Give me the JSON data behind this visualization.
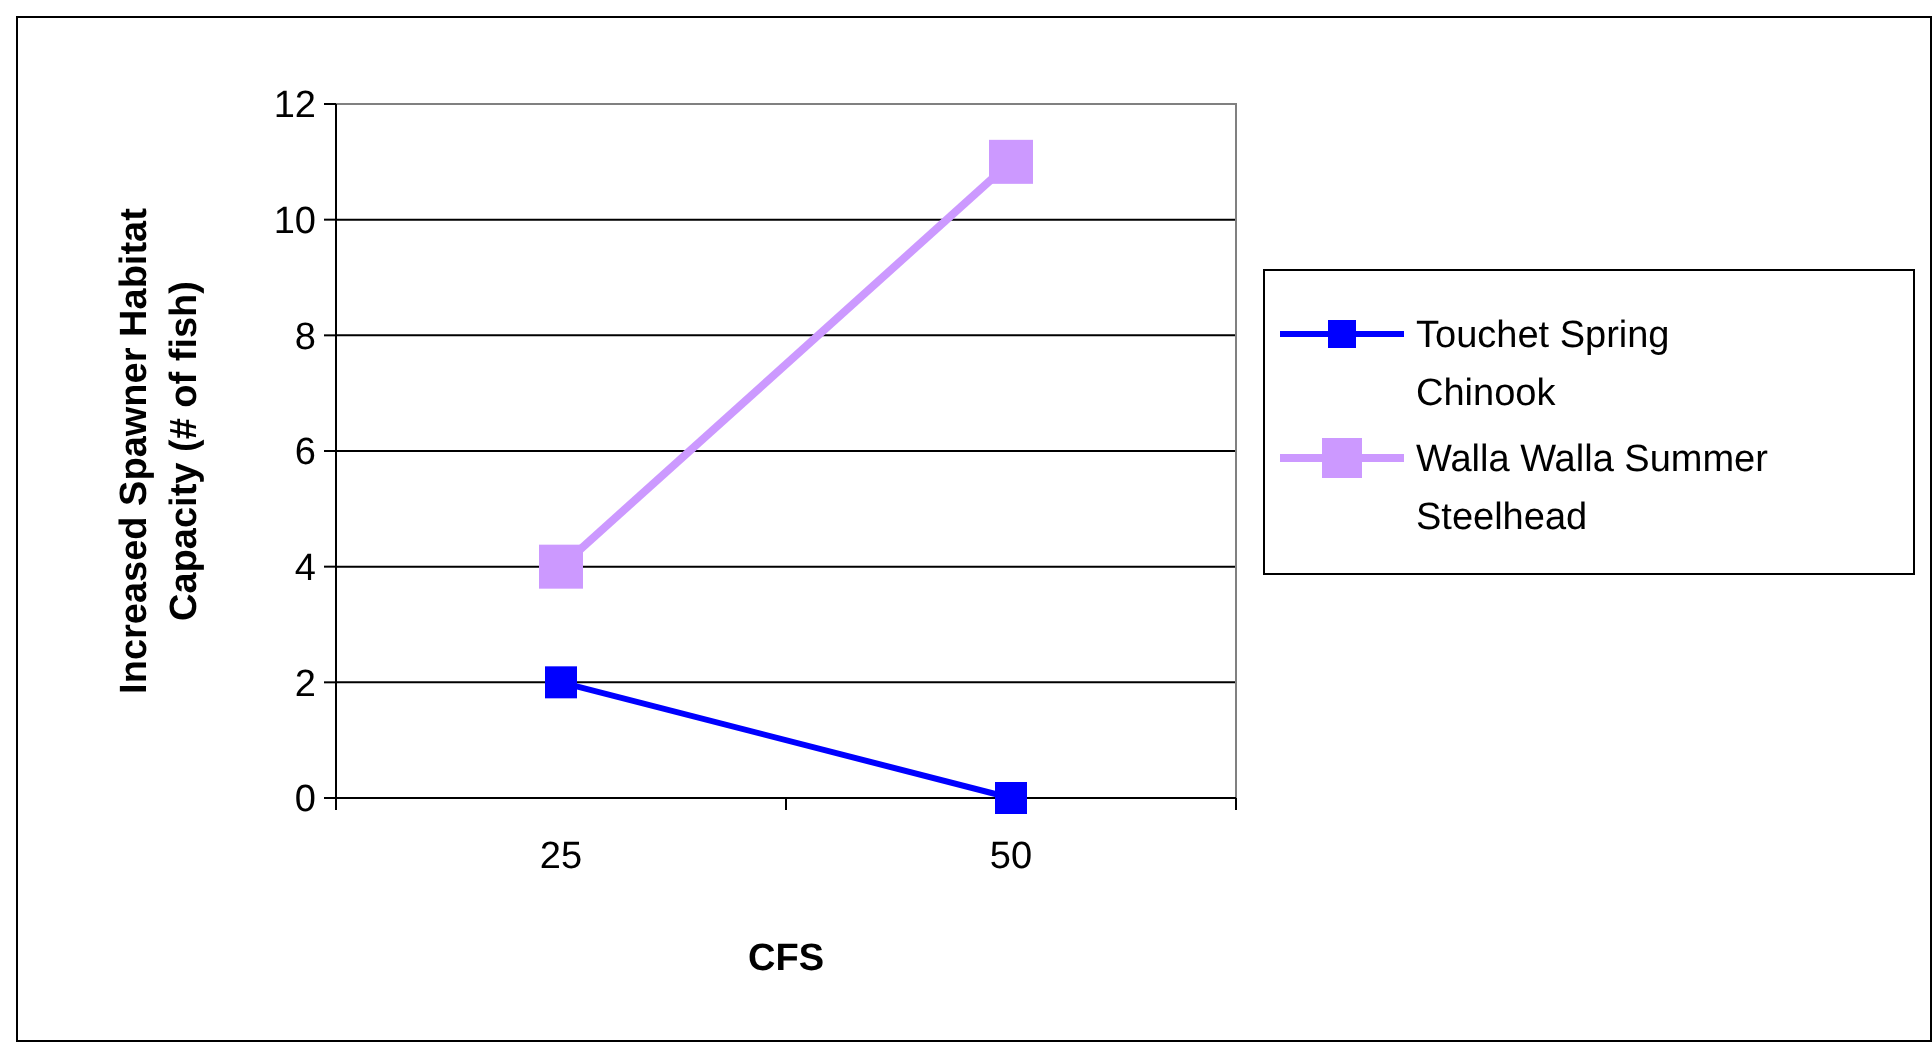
{
  "chart_data": {
    "type": "line",
    "xlabel": "CFS",
    "ylabel": "Increased Spawner Habitat Capacity (# of fish)",
    "categories": [
      "25",
      "50"
    ],
    "series": [
      {
        "name": "Touchet Spring Chinook",
        "color": "#0000ff",
        "values": [
          2,
          0
        ]
      },
      {
        "name": "Walla Walla Summer Steelhead",
        "color": "#cc99ff",
        "values": [
          4,
          11
        ]
      }
    ],
    "ylim": [
      0,
      12
    ],
    "yticks": [
      0,
      2,
      4,
      6,
      8,
      10,
      12
    ],
    "grid": "y",
    "legend": "right",
    "marker": "square",
    "line_style": "solid"
  }
}
